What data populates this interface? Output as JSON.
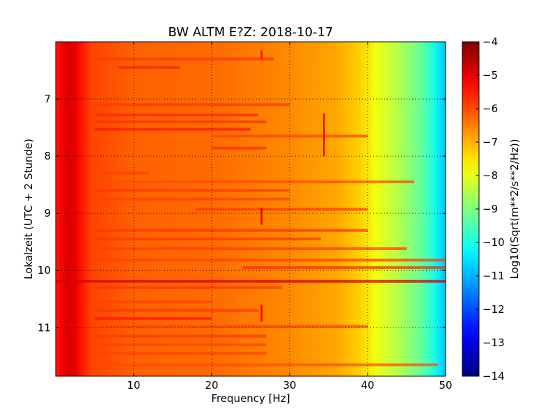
{
  "chart_data": {
    "type": "heatmap",
    "title": "BW ALTM E?Z: 2018-10-17",
    "xlabel": "Frequency [Hz]",
    "ylabel": "Lokalzeit (UTC + 2 Stunde)",
    "colorbar_label": "Log10(Sqrt(m**2/s**2/Hz))",
    "xlim": [
      0,
      50
    ],
    "ylim": [
      6.0,
      11.85
    ],
    "y_inverted": true,
    "clim": [
      -14,
      -4
    ],
    "colormap": "jet",
    "grid": true,
    "grid_style": "dotted",
    "x_ticks": [
      {
        "value": 10,
        "label": "10"
      },
      {
        "value": 20,
        "label": "20"
      },
      {
        "value": 30,
        "label": "30"
      },
      {
        "value": 40,
        "label": "40"
      },
      {
        "value": 50,
        "label": "50"
      }
    ],
    "y_ticks": [
      {
        "value": 7,
        "label": "7"
      },
      {
        "value": 8,
        "label": "8"
      },
      {
        "value": 9,
        "label": "9"
      },
      {
        "value": 10,
        "label": "10"
      },
      {
        "value": 11,
        "label": "11"
      }
    ],
    "colorbar_ticks": [
      {
        "value": -4,
        "label": "−4"
      },
      {
        "value": -5,
        "label": "−5"
      },
      {
        "value": -6,
        "label": "−6"
      },
      {
        "value": -7,
        "label": "−7"
      },
      {
        "value": -8,
        "label": "−8"
      },
      {
        "value": -9,
        "label": "−9"
      },
      {
        "value": -10,
        "label": "−10"
      },
      {
        "value": -11,
        "label": "−11"
      },
      {
        "value": -12,
        "label": "−12"
      },
      {
        "value": -13,
        "label": "−13"
      },
      {
        "value": -14,
        "label": "−14"
      }
    ],
    "spectrum_profile": [
      {
        "freq": 0.0,
        "level": -5.6
      },
      {
        "freq": 0.5,
        "level": -5.3
      },
      {
        "freq": 1.5,
        "level": -4.9
      },
      {
        "freq": 2.5,
        "level": -5.0
      },
      {
        "freq": 3.2,
        "level": -5.4
      },
      {
        "freq": 4.5,
        "level": -5.9
      },
      {
        "freq": 10.0,
        "level": -6.2
      },
      {
        "freq": 20.0,
        "level": -6.3
      },
      {
        "freq": 30.0,
        "level": -6.6
      },
      {
        "freq": 36.0,
        "level": -6.9
      },
      {
        "freq": 39.0,
        "level": -7.3
      },
      {
        "freq": 41.0,
        "level": -7.9
      },
      {
        "freq": 44.0,
        "level": -8.5
      },
      {
        "freq": 47.0,
        "level": -9.3
      },
      {
        "freq": 48.5,
        "level": -10.0
      },
      {
        "freq": 49.5,
        "level": -10.6
      },
      {
        "freq": 50.0,
        "level": -10.9
      }
    ],
    "horizontal_bands": [
      {
        "time": 6.3,
        "f_from": 5,
        "f_to": 28,
        "level": -5.8
      },
      {
        "time": 6.45,
        "f_from": 8,
        "f_to": 16,
        "level": -5.6
      },
      {
        "time": 7.1,
        "f_from": 5,
        "f_to": 30,
        "level": -5.8
      },
      {
        "time": 7.28,
        "f_from": 5,
        "f_to": 26,
        "level": -5.6
      },
      {
        "time": 7.4,
        "f_from": 5,
        "f_to": 27,
        "level": -5.7
      },
      {
        "time": 7.53,
        "f_from": 5,
        "f_to": 25,
        "level": -5.5
      },
      {
        "time": 7.65,
        "f_from": 20,
        "f_to": 40,
        "level": -5.9
      },
      {
        "time": 7.86,
        "f_from": 20,
        "f_to": 27,
        "level": -5.7
      },
      {
        "time": 8.3,
        "f_from": 5,
        "f_to": 12,
        "level": -5.9
      },
      {
        "time": 8.45,
        "f_from": 5,
        "f_to": 46,
        "level": -6.0
      },
      {
        "time": 8.6,
        "f_from": 5,
        "f_to": 30,
        "level": -5.8
      },
      {
        "time": 8.75,
        "f_from": 5,
        "f_to": 30,
        "level": -5.9
      },
      {
        "time": 8.93,
        "f_from": 18,
        "f_to": 40,
        "level": -5.8
      },
      {
        "time": 9.3,
        "f_from": 5,
        "f_to": 40,
        "level": -5.8
      },
      {
        "time": 9.45,
        "f_from": 5,
        "f_to": 34,
        "level": -5.8
      },
      {
        "time": 9.62,
        "f_from": 5,
        "f_to": 45,
        "level": -5.9
      },
      {
        "time": 9.82,
        "f_from": 5,
        "f_to": 50,
        "level": -5.9
      },
      {
        "time": 9.95,
        "f_from": 24,
        "f_to": 50,
        "level": -5.7
      },
      {
        "time": 10.19,
        "f_from": 0,
        "f_to": 50,
        "level": -4.9
      },
      {
        "time": 10.3,
        "f_from": 5,
        "f_to": 29,
        "level": -5.8
      },
      {
        "time": 10.55,
        "f_from": 5,
        "f_to": 20,
        "level": -5.9
      },
      {
        "time": 10.7,
        "f_from": 5,
        "f_to": 26,
        "level": -5.8
      },
      {
        "time": 10.84,
        "f_from": 5,
        "f_to": 20,
        "level": -5.5
      },
      {
        "time": 10.98,
        "f_from": 5,
        "f_to": 40,
        "level": -5.9
      },
      {
        "time": 11.15,
        "f_from": 5,
        "f_to": 27,
        "level": -5.8
      },
      {
        "time": 11.3,
        "f_from": 5,
        "f_to": 27,
        "level": -5.9
      },
      {
        "time": 11.45,
        "f_from": 5,
        "f_to": 27,
        "level": -5.9
      },
      {
        "time": 11.65,
        "f_from": 5,
        "f_to": 49,
        "level": -6.0
      }
    ],
    "vertical_lines": [
      {
        "freq": 34.4,
        "t_from": 7.25,
        "t_to": 8.0,
        "level": -5.2
      },
      {
        "freq": 26.4,
        "t_from": 8.9,
        "t_to": 9.2,
        "level": -5.0
      },
      {
        "freq": 26.4,
        "t_from": 10.6,
        "t_to": 10.9,
        "level": -5.1
      },
      {
        "freq": 26.4,
        "t_from": 6.15,
        "t_to": 6.3,
        "level": -5.3
      }
    ]
  }
}
